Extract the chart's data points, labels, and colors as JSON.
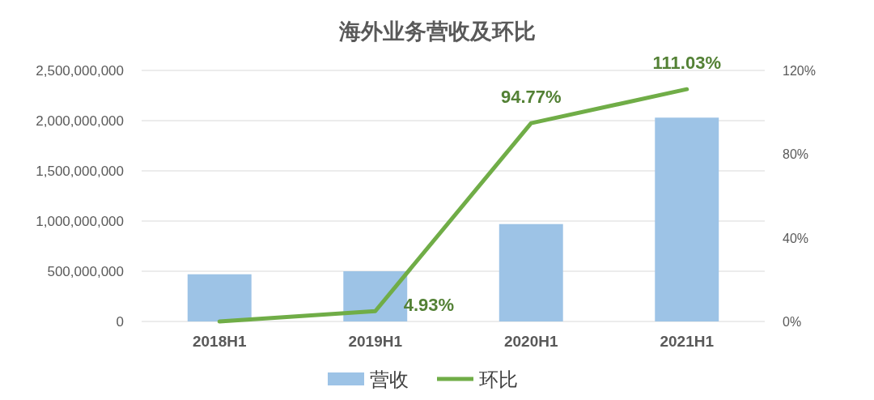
{
  "chart_data": {
    "type": "bar",
    "title": "海外业务营收及环比",
    "categories": [
      "2018H1",
      "2019H1",
      "2020H1",
      "2021H1"
    ],
    "series": [
      {
        "name": "营收",
        "color": "#9dc3e6",
        "values": [
          470000000,
          500000000,
          970000000,
          2030000000
        ]
      },
      {
        "name": "环比",
        "type": "line",
        "axis": "y2",
        "color": "#70ad47",
        "values": [
          0,
          4.93,
          94.77,
          111.03
        ],
        "value_labels": [
          null,
          "4.93%",
          "94.77%",
          "111.03%"
        ]
      }
    ],
    "ylim": [
      0,
      2500000000
    ],
    "yticks": [
      {
        "value": 0,
        "label": "0"
      },
      {
        "value": 500000000,
        "label": "500,000,000"
      },
      {
        "value": 1000000000,
        "label": "1,000,000,000"
      },
      {
        "value": 1500000000,
        "label": "1,500,000,000"
      },
      {
        "value": 2000000000,
        "label": "2,000,000,000"
      },
      {
        "value": 2500000000,
        "label": "2,500,000,000"
      }
    ],
    "y2lim": [
      0,
      120
    ],
    "y2ticks": [
      {
        "value": 0,
        "label": "0%"
      },
      {
        "value": 40,
        "label": "40%"
      },
      {
        "value": 80,
        "label": "80%"
      },
      {
        "value": 120,
        "label": "120%"
      }
    ],
    "grid": "y",
    "legend": "bottom",
    "marker": "none"
  }
}
